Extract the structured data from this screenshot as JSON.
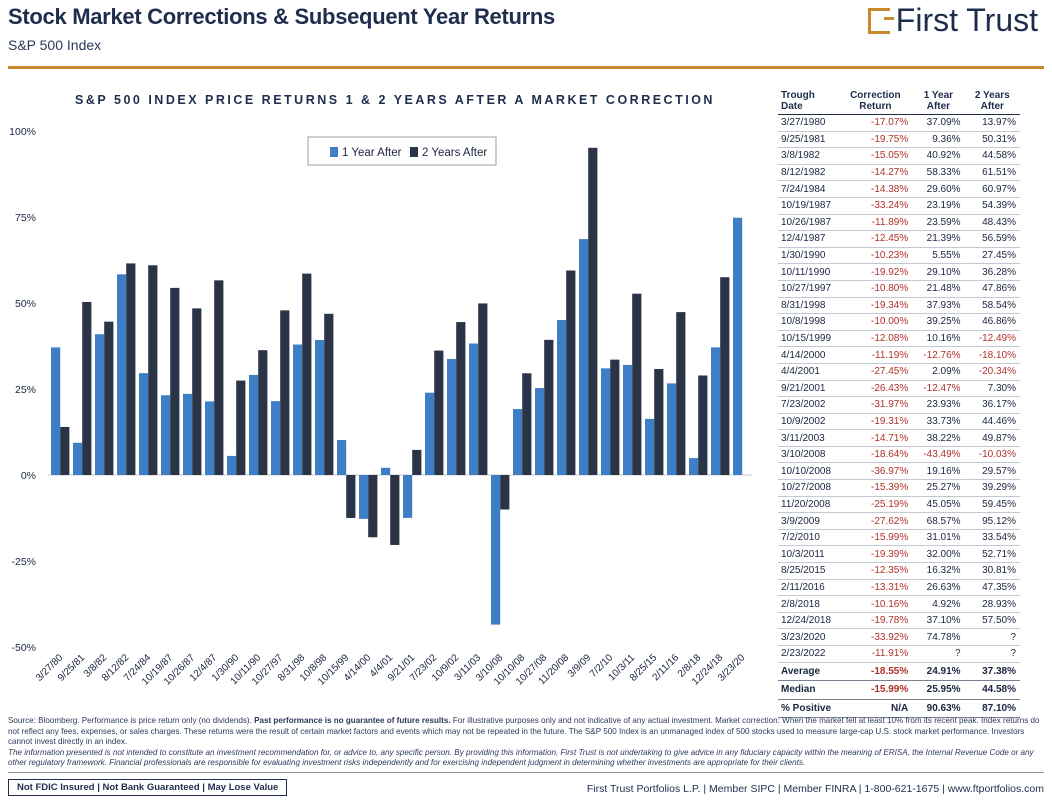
{
  "header": {
    "title": "Stock Market Corrections & Subsequent Year Returns",
    "subtitle": "S&P 500 Index",
    "logo_text": "First Trust"
  },
  "colors": {
    "series1": "#3d7ec4",
    "series2": "#2b3446",
    "accent": "#c98a2b",
    "negative": "#b0302a"
  },
  "chart_data": {
    "type": "bar",
    "title": "S&P 500 INDEX PRICE RETURNS 1 & 2 YEARS AFTER A MARKET CORRECTION",
    "categories": [
      "3/27/80",
      "9/25/81",
      "3/8/82",
      "8/12/82",
      "7/24/84",
      "10/19/87",
      "10/26/87",
      "12/4/87",
      "1/30/90",
      "10/11/90",
      "10/27/97",
      "8/31/98",
      "10/8/98",
      "10/15/99",
      "4/14/00",
      "4/4/01",
      "9/21/01",
      "7/23/02",
      "10/9/02",
      "3/11/03",
      "3/10/08",
      "10/10/08",
      "10/27/08",
      "11/20/08",
      "3/9/09",
      "7/2/10",
      "10/3/11",
      "8/25/15",
      "2/11/16",
      "2/8/18",
      "12/24/18",
      "3/23/20"
    ],
    "series": [
      {
        "name": "1 Year After",
        "values": [
          37.09,
          9.36,
          40.92,
          58.33,
          29.6,
          23.19,
          23.59,
          21.39,
          5.55,
          29.1,
          21.48,
          37.93,
          39.25,
          10.16,
          -12.76,
          2.09,
          -12.47,
          23.93,
          33.73,
          38.22,
          -43.49,
          19.16,
          25.27,
          45.05,
          68.57,
          31.01,
          32.0,
          16.32,
          26.63,
          4.92,
          37.1,
          74.78
        ]
      },
      {
        "name": "2 Years After",
        "values": [
          13.97,
          50.31,
          44.58,
          61.51,
          60.97,
          54.39,
          48.43,
          56.59,
          27.45,
          36.28,
          47.86,
          58.54,
          46.86,
          -12.49,
          -18.1,
          -20.34,
          7.3,
          36.17,
          44.46,
          49.87,
          -10.03,
          29.57,
          39.29,
          59.45,
          95.12,
          33.54,
          52.71,
          30.81,
          47.35,
          28.93,
          57.5,
          null
        ]
      }
    ],
    "yticks": [
      "100%",
      "75%",
      "50%",
      "25%",
      "0%",
      "-25%",
      "-50%"
    ],
    "ylim": [
      -50,
      100
    ],
    "grid": false,
    "legend": "top-left"
  },
  "table": {
    "headers": [
      "Trough Date",
      "Correction Return",
      "1 Year After",
      "2 Years After"
    ],
    "rows": [
      [
        "3/27/1980",
        "-17.07%",
        "37.09%",
        "13.97%"
      ],
      [
        "9/25/1981",
        "-19.75%",
        "9.36%",
        "50.31%"
      ],
      [
        "3/8/1982",
        "-15.05%",
        "40.92%",
        "44.58%"
      ],
      [
        "8/12/1982",
        "-14.27%",
        "58.33%",
        "61.51%"
      ],
      [
        "7/24/1984",
        "-14.38%",
        "29.60%",
        "60.97%"
      ],
      [
        "10/19/1987",
        "-33.24%",
        "23.19%",
        "54.39%"
      ],
      [
        "10/26/1987",
        "-11.89%",
        "23.59%",
        "48.43%"
      ],
      [
        "12/4/1987",
        "-12.45%",
        "21.39%",
        "56.59%"
      ],
      [
        "1/30/1990",
        "-10.23%",
        "5.55%",
        "27.45%"
      ],
      [
        "10/11/1990",
        "-19.92%",
        "29.10%",
        "36.28%"
      ],
      [
        "10/27/1997",
        "-10.80%",
        "21.48%",
        "47.86%"
      ],
      [
        "8/31/1998",
        "-19.34%",
        "37.93%",
        "58.54%"
      ],
      [
        "10/8/1998",
        "-10.00%",
        "39.25%",
        "46.86%"
      ],
      [
        "10/15/1999",
        "-12.08%",
        "10.16%",
        "-12.49%"
      ],
      [
        "4/14/2000",
        "-11.19%",
        "-12.76%",
        "-18.10%"
      ],
      [
        "4/4/2001",
        "-27.45%",
        "2.09%",
        "-20.34%"
      ],
      [
        "9/21/2001",
        "-26.43%",
        "-12.47%",
        "7.30%"
      ],
      [
        "7/23/2002",
        "-31.97%",
        "23.93%",
        "36.17%"
      ],
      [
        "10/9/2002",
        "-19.31%",
        "33.73%",
        "44.46%"
      ],
      [
        "3/11/2003",
        "-14.71%",
        "38.22%",
        "49.87%"
      ],
      [
        "3/10/2008",
        "-18.64%",
        "-43.49%",
        "-10.03%"
      ],
      [
        "10/10/2008",
        "-36.97%",
        "19.16%",
        "29.57%"
      ],
      [
        "10/27/2008",
        "-15.39%",
        "25.27%",
        "39.29%"
      ],
      [
        "11/20/2008",
        "-25.19%",
        "45.05%",
        "59.45%"
      ],
      [
        "3/9/2009",
        "-27.62%",
        "68.57%",
        "95.12%"
      ],
      [
        "7/2/2010",
        "-15.99%",
        "31.01%",
        "33.54%"
      ],
      [
        "10/3/2011",
        "-19.39%",
        "32.00%",
        "52.71%"
      ],
      [
        "8/25/2015",
        "-12.35%",
        "16.32%",
        "30.81%"
      ],
      [
        "2/11/2016",
        "-13.31%",
        "26.63%",
        "47.35%"
      ],
      [
        "2/8/2018",
        "-10.16%",
        "4.92%",
        "28.93%"
      ],
      [
        "12/24/2018",
        "-19.78%",
        "37.10%",
        "57.50%"
      ],
      [
        "3/23/2020",
        "-33.92%",
        "74.78%",
        "?"
      ],
      [
        "2/23/2022",
        "-11.91%",
        "?",
        "?"
      ]
    ],
    "stats": [
      [
        "Average",
        "-18.55%",
        "24.91%",
        "37.38%"
      ],
      [
        "Median",
        "-15.99%",
        "25.95%",
        "44.58%"
      ],
      [
        "% Positive",
        "N/A",
        "90.63%",
        "87.10%"
      ]
    ]
  },
  "footer": {
    "note1": "Source: Bloomberg. Performance is price return only (no dividends).",
    "note1_bold": "Past performance is no guarantee of future results.",
    "note1_rest": "For illustrative purposes only and not indicative of any actual investment. Market correction: When the market fell at least 10% from its recent peak. Index returns do not reflect any fees, expenses, or sales charges. These returns were the result of certain market factors and events which may not be repeated in the future. The S&P 500 Index is an unmanaged index of 500 stocks used to measure large-cap U.S. stock market performance. Investors cannot invest directly in an index.",
    "note2": "The information presented is not intended to constitute an investment recommendation for, or advice to, any specific person. By providing this information, First Trust is not undertaking to give advice in any fiduciary capacity within the meaning of ERISA, the Internal Revenue Code or any other regulatory framework. Financial professionals are responsible for evaluating investment risks independently and for exercising independent judgment in determining whether investments are appropriate for their clients.",
    "disclaimer": "Not FDIC Insured | Not Bank Guaranteed | May Lose Value",
    "contact": "First Trust Portfolios L.P. | Member SIPC | Member FINRA | 1-800-621-1675 | www.ftportfolios.com"
  }
}
